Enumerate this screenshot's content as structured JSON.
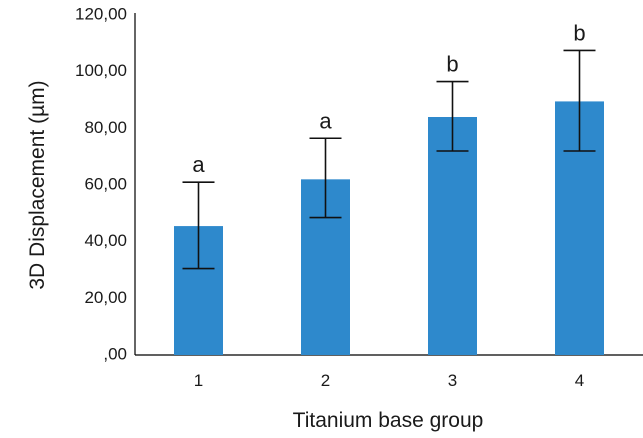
{
  "chart_data": {
    "type": "bar",
    "title": "",
    "xlabel": "Titanium base group",
    "ylabel": "3D Displacement (µm)",
    "categories": [
      "1",
      "2",
      "3",
      "4"
    ],
    "values": [
      45.5,
      62.0,
      84.0,
      89.5
    ],
    "error_upper": [
      61.0,
      76.5,
      96.5,
      107.5
    ],
    "error_lower": [
      30.5,
      48.5,
      72.0,
      72.0
    ],
    "significance_letters": [
      "a",
      "a",
      "b",
      "b"
    ],
    "ylim": [
      0,
      120
    ],
    "yticks": [
      0,
      20,
      40,
      60,
      80,
      100,
      120
    ],
    "ytick_labels": [
      ",00",
      "20,00",
      "40,00",
      "60,00",
      "80,00",
      "100,00",
      "120,00"
    ],
    "bar_color": "#2e89cc",
    "grid": false
  }
}
